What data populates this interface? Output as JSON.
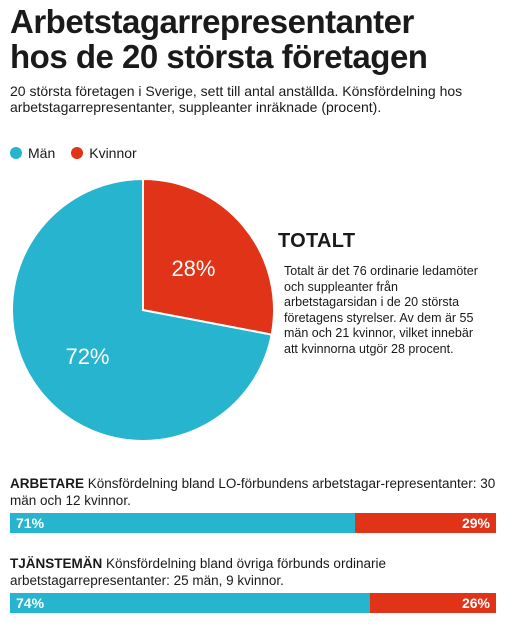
{
  "title_lines": [
    "Arbetstagarrepresentanter",
    "hos de 20 största företagen"
  ],
  "subtitle": "20 största företagen i Sverige, sett till antal anställda. Könsfördelning hos arbetstagarrepresentanter, suppleanter inräknade (procent).",
  "colors": {
    "man": "#27b4cf",
    "kvinnor": "#e03317"
  },
  "legend": [
    {
      "label": "Män",
      "color": "#27b4cf"
    },
    {
      "label": "Kvinnor",
      "color": "#e03317"
    }
  ],
  "total": {
    "heading": "TOTALT",
    "text": "Totalt är det 76 ordinarie ledamöter och suppleanter från arbetstagarsidan i de 20 största företagens styrelser. Av dem är 55 män och 21 kvinnor, vilket innebär att kvinnorna utgör 28 procent."
  },
  "chart_data": [
    {
      "type": "pie",
      "categories": [
        "Män",
        "Kvinnor"
      ],
      "values": [
        72,
        28
      ],
      "labels": [
        "72%",
        "28%"
      ]
    },
    {
      "type": "bar",
      "label": "ARBETARE",
      "description": "Könsfördelning bland LO-förbundens arbetstagar-representanter: 30 män och 12 kvinnor.",
      "categories": [
        "Män",
        "Kvinnor"
      ],
      "values": [
        71,
        29
      ],
      "labels": [
        "71%",
        "29%"
      ]
    },
    {
      "type": "bar",
      "label": "TJÄNSTEMÄN",
      "description": "Könsfördelning bland övriga förbunds ordinarie arbetstagarrepresentanter: 25 män, 9 kvinnor.",
      "categories": [
        "Män",
        "Kvinnor"
      ],
      "values": [
        74,
        26
      ],
      "labels": [
        "74%",
        "26%"
      ]
    }
  ]
}
